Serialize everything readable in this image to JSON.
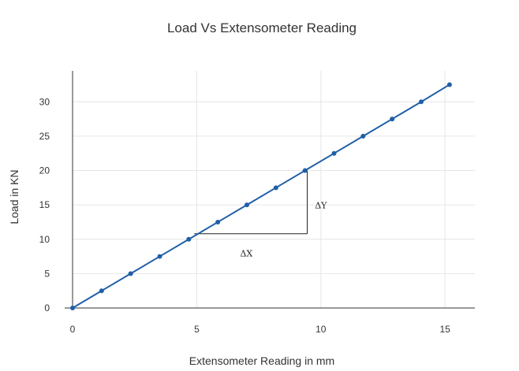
{
  "chart_data": {
    "type": "line",
    "title": "Load Vs Extensometer Reading",
    "xlabel": "Extensometer Reading in mm",
    "ylabel": "Load in KN",
    "xlim": [
      0,
      16.2
    ],
    "ylim": [
      0,
      34.5
    ],
    "xticks": [
      0,
      5,
      10,
      15
    ],
    "yticks": [
      0,
      5,
      10,
      15,
      20,
      25,
      30
    ],
    "grid": true,
    "series": [
      {
        "color": "#1f5fa8",
        "x": [
          0,
          1.17,
          2.34,
          3.51,
          4.68,
          5.85,
          7.02,
          8.19,
          9.36,
          10.53,
          11.7,
          12.87,
          14.04,
          15.18
        ],
        "y": [
          0,
          2.5,
          5,
          7.5,
          10,
          12.5,
          15,
          17.5,
          20,
          22.5,
          25,
          27.5,
          30,
          32.5
        ]
      }
    ],
    "annotations": [
      {
        "text": "ΔX",
        "x": 7.0,
        "y": 7.5
      },
      {
        "text": "ΔY",
        "x": 10.0,
        "y": 14.5
      }
    ],
    "slope_triangle": {
      "x0": 4.9,
      "x1": 9.45,
      "y0": 10.8,
      "y1": 20
    }
  }
}
